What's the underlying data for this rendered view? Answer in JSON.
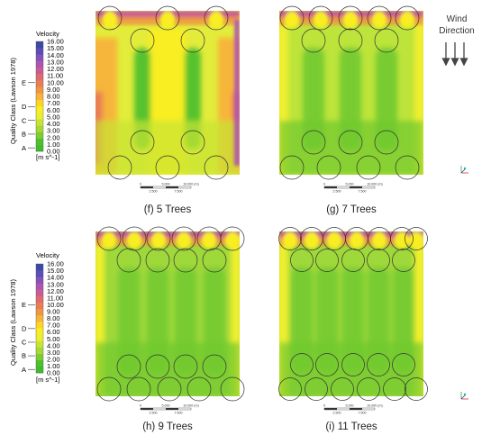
{
  "legend": {
    "title": "Velocity",
    "unit": "[m s^-1]",
    "axis_label": "Quality Class (Lawson 1978)",
    "ticks": [
      "16.00",
      "15.00",
      "14.00",
      "13.00",
      "12.00",
      "11.00",
      "10.00",
      "9.00",
      "8.00",
      "7.00",
      "6.00",
      "5.00",
      "4.00",
      "3.00",
      "2.00",
      "1.00",
      "0.00"
    ],
    "classes": [
      {
        "label": "E",
        "value": 10.0
      },
      {
        "label": "D",
        "value": 6.5
      },
      {
        "label": "C",
        "value": 4.5
      },
      {
        "label": "B",
        "value": 2.5
      },
      {
        "label": "A",
        "value": 0.5
      }
    ],
    "colors": [
      "#40bb2e",
      "#4cc12e",
      "#7ccd2f",
      "#a6d934",
      "#c8e433",
      "#ecef2e",
      "#f8ee20",
      "#ffd522",
      "#f6b53a",
      "#ef9642",
      "#e97d55",
      "#df6a70",
      "#c95d93",
      "#ad55b1",
      "#8552ba",
      "#5c4db8",
      "#3a4aa6"
    ]
  },
  "wind": {
    "line1": "Wind",
    "line2": "Direction"
  },
  "scalebar": {
    "labels_top": [
      "0",
      "5.000",
      "10.000 (m)"
    ],
    "labels_bottom": [
      "2.500",
      "7.500"
    ]
  },
  "panels": [
    {
      "caption": "(f)  5 Trees",
      "trees": 5
    },
    {
      "caption": "(g) 7 Trees",
      "trees": 7
    },
    {
      "caption": "(h) 9 Trees",
      "trees": 9
    },
    {
      "caption": "(i) 11 Trees",
      "trees": 11
    }
  ]
}
